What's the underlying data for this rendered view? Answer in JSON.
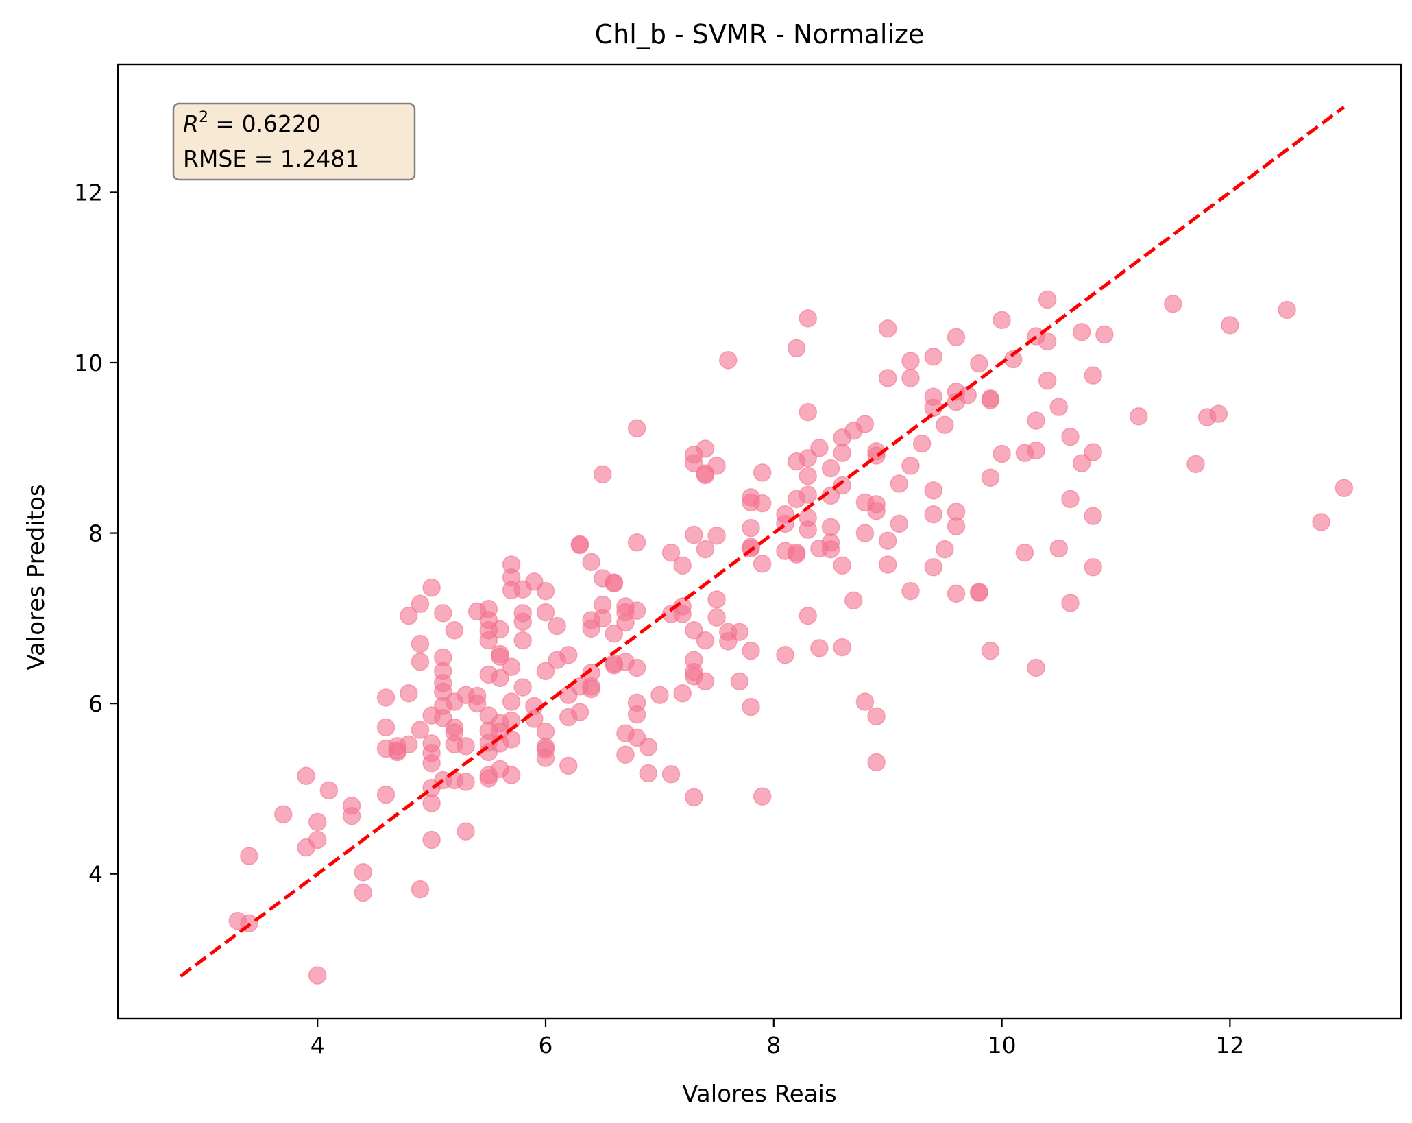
{
  "chart_data": {
    "type": "scatter",
    "title": "Chl_b - SVMR - Normalize",
    "xlabel": "Valores Reais",
    "ylabel": "Valores Preditos",
    "xlim": [
      2.25,
      13.5
    ],
    "ylim": [
      2.3,
      13.5
    ],
    "xticks": [
      4,
      6,
      8,
      10,
      12
    ],
    "yticks": [
      4,
      6,
      8,
      10,
      12
    ],
    "x_tick_labels": [
      "4",
      "6",
      "8",
      "10",
      "12"
    ],
    "y_tick_labels": [
      "4",
      "6",
      "8",
      "10",
      "12"
    ],
    "grid": false,
    "point_color": "#f4738f",
    "point_alpha": 0.6,
    "line_color": "#ff0000",
    "annotation": {
      "r2_label": "R",
      "r2_sup": "2",
      "r2_value": " = 0.6220",
      "rmse_text": "RMSE = 1.2481",
      "box_fill": "#f7e9d4",
      "box_stroke": "#808080"
    },
    "identity_line": {
      "from": [
        2.8,
        2.8
      ],
      "to": [
        13.0,
        13.0
      ],
      "style": "dashed"
    },
    "points": [
      [
        3.3,
        3.45
      ],
      [
        3.4,
        3.42
      ],
      [
        3.4,
        4.21
      ],
      [
        3.7,
        4.7
      ],
      [
        3.9,
        5.15
      ],
      [
        3.9,
        4.31
      ],
      [
        4.0,
        4.61
      ],
      [
        4.0,
        4.4
      ],
      [
        4.0,
        2.81
      ],
      [
        4.1,
        4.98
      ],
      [
        4.3,
        4.8
      ],
      [
        4.3,
        4.68
      ],
      [
        4.4,
        4.02
      ],
      [
        4.4,
        3.78
      ],
      [
        4.6,
        6.07
      ],
      [
        4.6,
        5.72
      ],
      [
        4.6,
        5.47
      ],
      [
        4.6,
        4.93
      ],
      [
        4.7,
        5.5
      ],
      [
        4.7,
        5.45
      ],
      [
        4.7,
        5.43
      ],
      [
        4.8,
        7.03
      ],
      [
        4.8,
        6.12
      ],
      [
        4.8,
        5.52
      ],
      [
        4.9,
        7.17
      ],
      [
        4.9,
        6.7
      ],
      [
        4.9,
        6.49
      ],
      [
        4.9,
        5.69
      ],
      [
        4.9,
        3.82
      ],
      [
        5.0,
        7.36
      ],
      [
        5.0,
        5.86
      ],
      [
        5.0,
        5.53
      ],
      [
        5.0,
        5.42
      ],
      [
        5.0,
        5.3
      ],
      [
        5.0,
        5.01
      ],
      [
        5.0,
        4.83
      ],
      [
        5.0,
        4.4
      ],
      [
        5.1,
        7.06
      ],
      [
        5.1,
        6.54
      ],
      [
        5.1,
        6.38
      ],
      [
        5.1,
        6.24
      ],
      [
        5.1,
        6.14
      ],
      [
        5.1,
        5.97
      ],
      [
        5.1,
        5.83
      ],
      [
        5.1,
        5.1
      ],
      [
        5.2,
        6.86
      ],
      [
        5.2,
        6.02
      ],
      [
        5.2,
        5.72
      ],
      [
        5.2,
        5.66
      ],
      [
        5.2,
        5.52
      ],
      [
        5.2,
        5.1
      ],
      [
        5.3,
        6.1
      ],
      [
        5.3,
        5.5
      ],
      [
        5.3,
        5.08
      ],
      [
        5.3,
        4.5
      ],
      [
        5.4,
        7.08
      ],
      [
        5.4,
        6.09
      ],
      [
        5.4,
        6.0
      ],
      [
        5.5,
        7.11
      ],
      [
        5.5,
        6.98
      ],
      [
        5.5,
        6.86
      ],
      [
        5.5,
        6.74
      ],
      [
        5.5,
        6.34
      ],
      [
        5.5,
        5.86
      ],
      [
        5.5,
        5.68
      ],
      [
        5.5,
        5.54
      ],
      [
        5.5,
        5.43
      ],
      [
        5.5,
        5.16
      ],
      [
        5.5,
        5.12
      ],
      [
        5.6,
        6.87
      ],
      [
        5.6,
        6.58
      ],
      [
        5.6,
        6.55
      ],
      [
        5.6,
        6.3
      ],
      [
        5.6,
        5.77
      ],
      [
        5.6,
        5.67
      ],
      [
        5.6,
        5.53
      ],
      [
        5.6,
        5.23
      ],
      [
        5.7,
        7.63
      ],
      [
        5.7,
        7.48
      ],
      [
        5.7,
        7.33
      ],
      [
        5.7,
        6.43
      ],
      [
        5.7,
        6.02
      ],
      [
        5.7,
        5.8
      ],
      [
        5.7,
        5.58
      ],
      [
        5.7,
        5.16
      ],
      [
        5.8,
        7.34
      ],
      [
        5.8,
        7.06
      ],
      [
        5.8,
        6.96
      ],
      [
        5.8,
        6.74
      ],
      [
        5.8,
        6.19
      ],
      [
        5.9,
        7.43
      ],
      [
        5.9,
        5.97
      ],
      [
        5.9,
        5.82
      ],
      [
        6.0,
        7.32
      ],
      [
        6.0,
        7.07
      ],
      [
        6.0,
        6.38
      ],
      [
        6.0,
        5.67
      ],
      [
        6.0,
        5.49
      ],
      [
        6.0,
        5.46
      ],
      [
        6.0,
        5.36
      ],
      [
        6.1,
        6.91
      ],
      [
        6.1,
        6.51
      ],
      [
        6.2,
        6.57
      ],
      [
        6.2,
        6.1
      ],
      [
        6.2,
        5.84
      ],
      [
        6.2,
        5.27
      ],
      [
        6.3,
        7.87
      ],
      [
        6.3,
        7.86
      ],
      [
        6.3,
        6.2
      ],
      [
        6.3,
        5.9
      ],
      [
        6.4,
        7.66
      ],
      [
        6.4,
        6.98
      ],
      [
        6.4,
        6.88
      ],
      [
        6.4,
        6.36
      ],
      [
        6.4,
        6.2
      ],
      [
        6.4,
        6.17
      ],
      [
        6.5,
        8.69
      ],
      [
        6.5,
        7.47
      ],
      [
        6.5,
        7.16
      ],
      [
        6.5,
        7.0
      ],
      [
        6.6,
        7.42
      ],
      [
        6.6,
        7.41
      ],
      [
        6.6,
        6.82
      ],
      [
        6.6,
        6.47
      ],
      [
        6.6,
        6.45
      ],
      [
        6.7,
        7.14
      ],
      [
        6.7,
        7.07
      ],
      [
        6.7,
        6.95
      ],
      [
        6.7,
        6.49
      ],
      [
        6.7,
        5.65
      ],
      [
        6.7,
        5.4
      ],
      [
        6.8,
        9.23
      ],
      [
        6.8,
        7.89
      ],
      [
        6.8,
        7.09
      ],
      [
        6.8,
        6.42
      ],
      [
        6.8,
        6.01
      ],
      [
        6.8,
        5.87
      ],
      [
        6.8,
        5.6
      ],
      [
        6.9,
        5.49
      ],
      [
        6.9,
        5.18
      ],
      [
        7.0,
        6.1
      ],
      [
        7.1,
        7.77
      ],
      [
        7.1,
        7.05
      ],
      [
        7.1,
        5.17
      ],
      [
        7.2,
        7.62
      ],
      [
        7.2,
        7.14
      ],
      [
        7.2,
        7.05
      ],
      [
        7.2,
        6.12
      ],
      [
        7.3,
        8.92
      ],
      [
        7.3,
        8.82
      ],
      [
        7.3,
        7.98
      ],
      [
        7.3,
        6.86
      ],
      [
        7.3,
        6.51
      ],
      [
        7.3,
        6.37
      ],
      [
        7.3,
        6.32
      ],
      [
        7.3,
        4.9
      ],
      [
        7.4,
        8.99
      ],
      [
        7.4,
        8.7
      ],
      [
        7.4,
        8.68
      ],
      [
        7.4,
        7.81
      ],
      [
        7.4,
        6.74
      ],
      [
        7.4,
        6.26
      ],
      [
        7.5,
        8.79
      ],
      [
        7.5,
        7.97
      ],
      [
        7.5,
        7.22
      ],
      [
        7.5,
        7.01
      ],
      [
        7.6,
        10.03
      ],
      [
        7.6,
        6.84
      ],
      [
        7.6,
        6.73
      ],
      [
        7.7,
        6.84
      ],
      [
        7.7,
        6.26
      ],
      [
        7.8,
        8.42
      ],
      [
        7.8,
        8.36
      ],
      [
        7.8,
        8.06
      ],
      [
        7.8,
        7.84
      ],
      [
        7.8,
        7.82
      ],
      [
        7.8,
        6.62
      ],
      [
        7.8,
        5.96
      ],
      [
        7.9,
        8.71
      ],
      [
        7.9,
        8.35
      ],
      [
        7.9,
        7.64
      ],
      [
        7.9,
        4.91
      ],
      [
        8.1,
        8.22
      ],
      [
        8.1,
        8.11
      ],
      [
        8.1,
        7.79
      ],
      [
        8.1,
        6.57
      ],
      [
        8.2,
        10.17
      ],
      [
        8.2,
        8.84
      ],
      [
        8.2,
        8.4
      ],
      [
        8.2,
        7.77
      ],
      [
        8.2,
        7.75
      ],
      [
        8.3,
        10.52
      ],
      [
        8.3,
        9.42
      ],
      [
        8.3,
        8.88
      ],
      [
        8.3,
        8.67
      ],
      [
        8.3,
        8.45
      ],
      [
        8.3,
        8.18
      ],
      [
        8.3,
        8.04
      ],
      [
        8.3,
        7.03
      ],
      [
        8.4,
        9.0
      ],
      [
        8.4,
        7.82
      ],
      [
        8.4,
        6.65
      ],
      [
        8.5,
        8.76
      ],
      [
        8.5,
        8.44
      ],
      [
        8.5,
        8.07
      ],
      [
        8.5,
        7.89
      ],
      [
        8.5,
        7.81
      ],
      [
        8.6,
        9.12
      ],
      [
        8.6,
        8.94
      ],
      [
        8.6,
        8.56
      ],
      [
        8.6,
        7.62
      ],
      [
        8.6,
        6.66
      ],
      [
        8.7,
        9.2
      ],
      [
        8.7,
        7.21
      ],
      [
        8.8,
        9.28
      ],
      [
        8.8,
        8.36
      ],
      [
        8.8,
        8.0
      ],
      [
        8.8,
        6.02
      ],
      [
        8.9,
        8.96
      ],
      [
        8.9,
        8.91
      ],
      [
        8.9,
        8.34
      ],
      [
        8.9,
        8.26
      ],
      [
        8.9,
        5.85
      ],
      [
        8.9,
        5.31
      ],
      [
        9.0,
        10.4
      ],
      [
        9.0,
        9.82
      ],
      [
        9.0,
        7.91
      ],
      [
        9.0,
        7.63
      ],
      [
        9.1,
        8.58
      ],
      [
        9.1,
        8.11
      ],
      [
        9.2,
        10.02
      ],
      [
        9.2,
        9.82
      ],
      [
        9.2,
        8.79
      ],
      [
        9.2,
        7.32
      ],
      [
        9.3,
        9.05
      ],
      [
        9.4,
        10.07
      ],
      [
        9.4,
        9.6
      ],
      [
        9.4,
        9.47
      ],
      [
        9.4,
        8.5
      ],
      [
        9.4,
        8.22
      ],
      [
        9.4,
        7.6
      ],
      [
        9.5,
        9.27
      ],
      [
        9.5,
        7.81
      ],
      [
        9.6,
        10.3
      ],
      [
        9.6,
        9.66
      ],
      [
        9.6,
        9.54
      ],
      [
        9.6,
        8.25
      ],
      [
        9.6,
        8.08
      ],
      [
        9.6,
        7.29
      ],
      [
        9.7,
        9.62
      ],
      [
        9.8,
        9.99
      ],
      [
        9.8,
        7.31
      ],
      [
        9.8,
        7.3
      ],
      [
        9.9,
        9.58
      ],
      [
        9.9,
        9.56
      ],
      [
        9.9,
        8.65
      ],
      [
        9.9,
        6.62
      ],
      [
        10.0,
        10.5
      ],
      [
        10.0,
        8.93
      ],
      [
        10.1,
        10.04
      ],
      [
        10.2,
        8.94
      ],
      [
        10.2,
        7.77
      ],
      [
        10.3,
        10.31
      ],
      [
        10.3,
        9.32
      ],
      [
        10.3,
        8.97
      ],
      [
        10.3,
        6.42
      ],
      [
        10.4,
        10.74
      ],
      [
        10.4,
        10.25
      ],
      [
        10.4,
        9.79
      ],
      [
        10.5,
        9.48
      ],
      [
        10.5,
        7.82
      ],
      [
        10.6,
        9.13
      ],
      [
        10.6,
        8.4
      ],
      [
        10.6,
        7.18
      ],
      [
        10.7,
        10.36
      ],
      [
        10.7,
        8.82
      ],
      [
        10.8,
        9.85
      ],
      [
        10.8,
        8.95
      ],
      [
        10.8,
        8.2
      ],
      [
        10.8,
        7.6
      ],
      [
        10.9,
        10.33
      ],
      [
        11.2,
        9.37
      ],
      [
        11.5,
        10.69
      ],
      [
        11.7,
        8.81
      ],
      [
        11.8,
        9.36
      ],
      [
        11.9,
        9.4
      ],
      [
        12.0,
        10.44
      ],
      [
        12.5,
        10.62
      ],
      [
        12.8,
        8.13
      ],
      [
        13.0,
        8.53
      ]
    ]
  }
}
